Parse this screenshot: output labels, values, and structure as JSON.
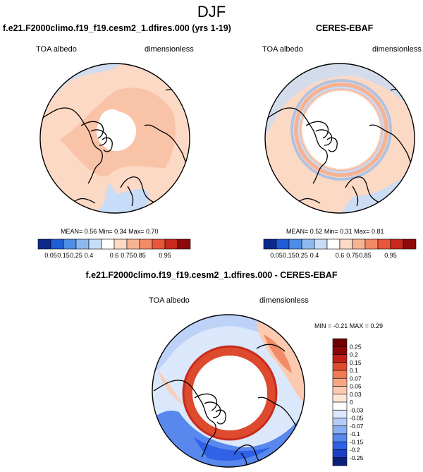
{
  "page_title": "DJF",
  "colors": {
    "seq_scale": [
      "#0b2a8c",
      "#1f5cd6",
      "#4d8de8",
      "#8db9f0",
      "#c7dcf7",
      "#ffffff",
      "#fcd9c5",
      "#f7b493",
      "#f28a66",
      "#e8563a",
      "#c8281d",
      "#8e0a0a"
    ],
    "diff_scale": [
      "#0a1f7a",
      "#1a3fc6",
      "#2f62e6",
      "#5888ee",
      "#86aef3",
      "#b4cdf6",
      "#dbe7fa",
      "#ffffff",
      "#fde6d6",
      "#fbcab0",
      "#f7a684",
      "#ef7a56",
      "#de4a2e",
      "#c02015",
      "#8a0606"
    ],
    "map_land": "#000000"
  },
  "chart_data": [
    {
      "type": "heatmap",
      "projection": "north-polar-stereographic",
      "title": "f.e21.F2000climo.f19_f19.cesm2_1.dfires.000 (yrs 1-19)",
      "left_label": "TOA albedo",
      "right_label": "dimensionless",
      "stats": {
        "mean_label": "MEAN=",
        "mean": "0.56",
        "min_label": "Min=",
        "min": "0.34",
        "max_label": "Max=",
        "max": "0.70"
      },
      "colorbar": {
        "orientation": "horizontal",
        "ticks": [
          "0.05",
          "0.15",
          "0.25",
          "0.4",
          "0.6",
          "0.75",
          "0.85",
          "0.95"
        ]
      }
    },
    {
      "type": "heatmap",
      "projection": "north-polar-stereographic",
      "title": "CERES-EBAF",
      "left_label": "TOA albedo",
      "right_label": "dimensionless",
      "stats": {
        "mean_label": "MEAN=",
        "mean": "0.52",
        "min_label": "Min=",
        "min": "0.31",
        "max_label": "Max=",
        "max": "0.81"
      },
      "colorbar": {
        "orientation": "horizontal",
        "ticks": [
          "0.05",
          "0.15",
          "0.25",
          "0.4",
          "0.6",
          "0.75",
          "0.85",
          "0.95"
        ]
      }
    },
    {
      "type": "heatmap",
      "projection": "north-polar-stereographic",
      "title": "f.e21.F2000climo.f19_f19.cesm2_1.dfires.000 - CERES-EBAF",
      "left_label": "TOA albedo",
      "right_label": "dimensionless",
      "stats_text": "MIN =  -0.21 MAX =   0.29",
      "colorbar": {
        "orientation": "vertical",
        "ticks": [
          "0.25",
          "0.2",
          "0.15",
          "0.1",
          "0.07",
          "0.05",
          "0.03",
          "0",
          "-0.03",
          "-0.05",
          "-0.07",
          "-0.1",
          "-0.15",
          "-0.2",
          "-0.25"
        ]
      }
    }
  ]
}
